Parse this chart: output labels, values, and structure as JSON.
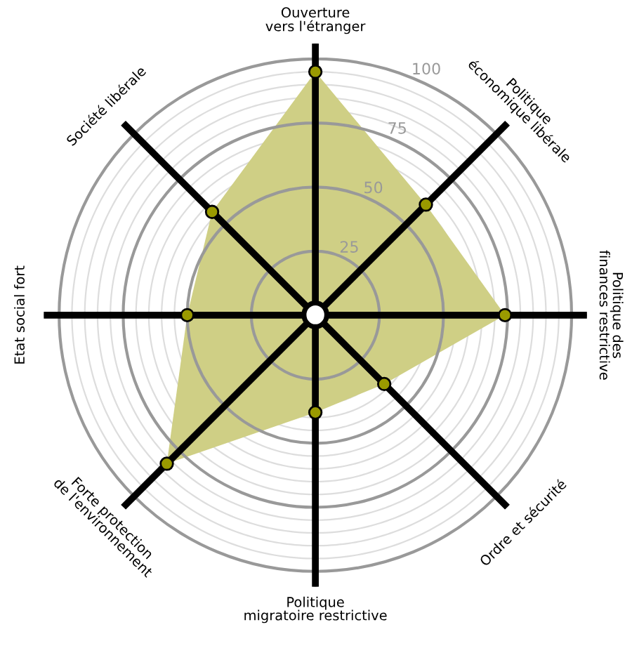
{
  "chart_data": {
    "type": "radar",
    "categories": [
      "Ouverture\nvers l'étranger",
      "Politique\néconomique libérale",
      "Politique des\nfinances restrictive",
      "Ordre et sécurité",
      "Politique\nmigratoire restrictive",
      "Forte protection\nde l'environnement",
      "Etat social fort",
      "Société libérale"
    ],
    "series": [
      {
        "color": "#cfcf85",
        "values": [
          95,
          61,
          74,
          38,
          38,
          82,
          50,
          57
        ]
      }
    ],
    "ylim": [
      0,
      106
    ],
    "yticks": [
      25,
      50,
      75,
      100
    ],
    "grid": true,
    "marker": "circle"
  }
}
